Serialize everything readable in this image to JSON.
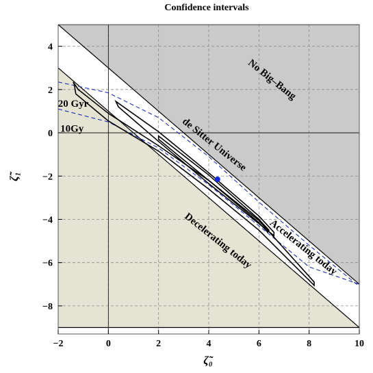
{
  "chart_data": {
    "type": "contour",
    "title": "Confidence intervals",
    "xlabel": "ζ̃₀",
    "ylabel": "ζ̃₁",
    "xlim": [
      -2,
      10
    ],
    "ylim": [
      -9.3,
      5
    ],
    "x_ticks": [
      -2,
      0,
      2,
      4,
      6,
      8,
      10
    ],
    "x_tick_labels": [
      "−2",
      "0",
      "2",
      "4",
      "6",
      "8",
      "10"
    ],
    "y_ticks": [
      -8,
      -6,
      -4,
      -2,
      0,
      2,
      4
    ],
    "y_tick_labels": [
      "−8",
      "−6",
      "−4",
      "−2",
      "0",
      "2",
      "4"
    ],
    "grid": "dashed",
    "regions": [
      {
        "label": "No Big–Bang",
        "color": "#cacaca",
        "polygon": [
          [
            -2,
            5
          ],
          [
            10,
            5
          ],
          [
            10,
            -7
          ]
        ]
      },
      {
        "label": "Decelerating today",
        "color": "#e5e4d4",
        "polygon": [
          [
            -2,
            3
          ],
          [
            10,
            -9
          ],
          [
            -2,
            -9
          ]
        ]
      }
    ],
    "boundary_lines": [
      {
        "label": "de Sitter Universe",
        "points": [
          [
            -2,
            5
          ],
          [
            10,
            -7
          ]
        ]
      },
      {
        "label": "Accelerating today",
        "points": [
          [
            -2,
            3
          ],
          [
            10,
            -9
          ]
        ]
      }
    ],
    "age_curves": [
      {
        "label": "20 Gyr",
        "color": "#1f2fb8",
        "points": [
          [
            -2,
            2.35
          ],
          [
            0,
            1.85
          ],
          [
            2,
            0.7
          ],
          [
            4,
            -1.1
          ],
          [
            6,
            -3.2
          ],
          [
            8,
            -5.2
          ],
          [
            10,
            -7.1
          ]
        ]
      },
      {
        "label": "10Gy",
        "color": "#1f2fb8",
        "points": [
          [
            -2,
            1.1
          ],
          [
            0,
            0.5
          ],
          [
            2,
            -0.7
          ],
          [
            4,
            -2.4
          ],
          [
            6,
            -4.3
          ],
          [
            8,
            -6.2
          ],
          [
            10,
            -7.0
          ]
        ]
      }
    ],
    "best_fit": {
      "x": 4.35,
      "y": -2.15,
      "color": "#1028e0"
    },
    "contours": [
      {
        "label": "",
        "points": [
          [
            -1.4,
            2.35
          ],
          [
            -1.2,
            2.0
          ],
          [
            0,
            0.9
          ],
          [
            2,
            -0.6
          ],
          [
            4,
            -2.2
          ],
          [
            6,
            -4.05
          ],
          [
            8.2,
            -6.9
          ],
          [
            8.2,
            -7.05
          ],
          [
            6,
            -4.5
          ],
          [
            4,
            -2.6
          ],
          [
            2,
            -0.85
          ],
          [
            0,
            0.55
          ],
          [
            -1.3,
            1.8
          ],
          [
            -1.35,
            2.2
          ],
          [
            -1.4,
            2.35
          ]
        ]
      },
      {
        "label": "",
        "points": [
          [
            0.3,
            1.45
          ],
          [
            2,
            0.05
          ],
          [
            4,
            -1.85
          ],
          [
            6,
            -3.85
          ],
          [
            6.6,
            -4.6
          ],
          [
            6.6,
            -4.75
          ],
          [
            6,
            -4.2
          ],
          [
            4,
            -2.35
          ],
          [
            2,
            -0.4
          ],
          [
            0.4,
            1.2
          ],
          [
            0.3,
            1.45
          ]
        ]
      },
      {
        "label": "",
        "points": [
          [
            2,
            -0.15
          ],
          [
            4,
            -1.95
          ],
          [
            6,
            -4.0
          ],
          [
            6.4,
            -4.5
          ],
          [
            6.35,
            -4.6
          ],
          [
            6,
            -4.15
          ],
          [
            4,
            -2.2
          ],
          [
            2,
            -0.3
          ],
          [
            2,
            -0.15
          ]
        ]
      }
    ],
    "annotations": [
      {
        "text": "No Big–Bang",
        "x": 6.45,
        "y": 2.35,
        "angle": 38.5
      },
      {
        "text": "de Sitter Universe",
        "x": 4.15,
        "y": -0.65,
        "angle": 38.5
      },
      {
        "text": "Accelerating today",
        "x": 7.7,
        "y": -5.4,
        "angle": 38.5
      },
      {
        "text": "Decelerating today",
        "x": 4.3,
        "y": -5.1,
        "angle": 38.5
      },
      {
        "text": "20 Gyr",
        "x": -1.4,
        "y": 1.2,
        "angle": 0
      },
      {
        "text": "10Gy",
        "x": -1.45,
        "y": 0.05,
        "angle": 0
      }
    ]
  }
}
